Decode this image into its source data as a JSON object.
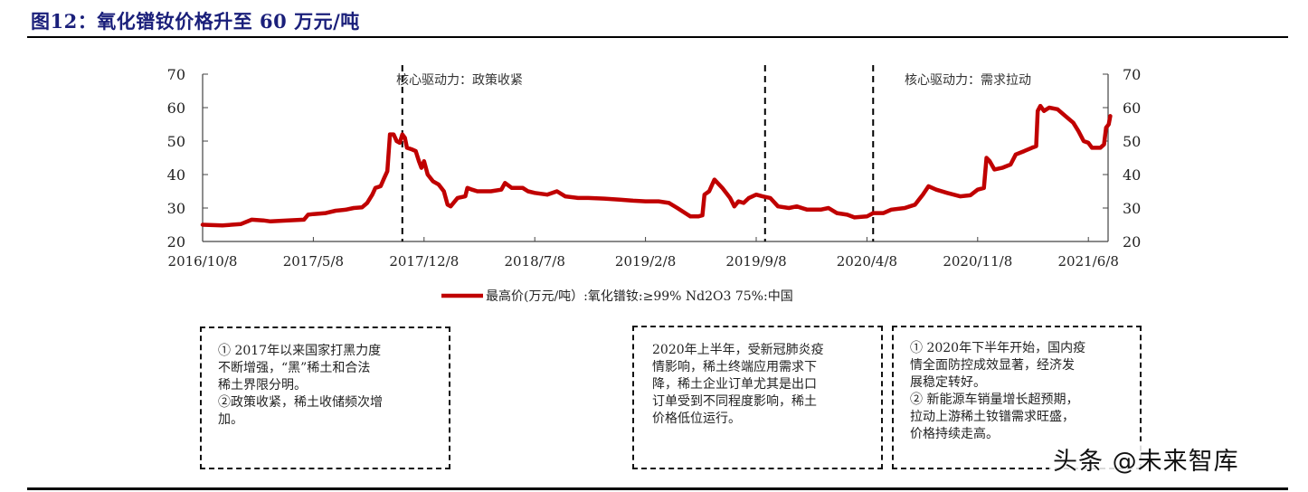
{
  "figure": {
    "title": "图12：氧化镨钕价格升至 60 万元/吨"
  },
  "chart_data": {
    "type": "line",
    "title": "图12：氧化镨钕价格升至 60 万元/吨",
    "xlabel": "",
    "ylabel": "",
    "ylim": [
      20,
      70
    ],
    "y_ticks": [
      20,
      30,
      40,
      50,
      60,
      70
    ],
    "y_right_ticks": [
      20,
      30,
      40,
      50,
      60,
      70
    ],
    "x_ticks": [
      "2016/10/8",
      "2017/5/8",
      "2017/12/8",
      "2018/7/8",
      "2019/2/8",
      "2019/9/8",
      "2020/4/8",
      "2020/11/8",
      "2021/6/8"
    ],
    "grid": false,
    "legend_position": "bottom",
    "series": [
      {
        "name": "最高价(万元/吨）:氧化镨钕:≥99% Nd2O3 75%:中国",
        "color": "#c00000",
        "points": [
          [
            "2016/10/8",
            25
          ],
          [
            "2016/11/15",
            24.8
          ],
          [
            "2016/12/20",
            25.2
          ],
          [
            "2017/1/10",
            26.5
          ],
          [
            "2017/2/1",
            26.3
          ],
          [
            "2017/2/15",
            26
          ],
          [
            "2017/3/20",
            26.3
          ],
          [
            "2017/4/20",
            26.5
          ],
          [
            "2017/4/28",
            28
          ],
          [
            "2017/5/8",
            28.2
          ],
          [
            "2017/6/1",
            28.5
          ],
          [
            "2017/6/20",
            29.2
          ],
          [
            "2017/7/10",
            29.5
          ],
          [
            "2017/7/25",
            30
          ],
          [
            "2017/8/10",
            30.2
          ],
          [
            "2017/8/20",
            31.5
          ],
          [
            "2017/8/30",
            34
          ],
          [
            "2017/9/5",
            36
          ],
          [
            "2017/9/15",
            36.5
          ],
          [
            "2017/9/22",
            39
          ],
          [
            "2017/9/28",
            41
          ],
          [
            "2017/10/3",
            52
          ],
          [
            "2017/10/10",
            52
          ],
          [
            "2017/10/16",
            50
          ],
          [
            "2017/10/22",
            49.5
          ],
          [
            "2017/10/27",
            52
          ],
          [
            "2017/11/1",
            51
          ],
          [
            "2017/11/5",
            48
          ],
          [
            "2017/11/15",
            47.5
          ],
          [
            "2017/11/22",
            47
          ],
          [
            "2017/11/28",
            44
          ],
          [
            "2017/12/3",
            42
          ],
          [
            "2017/12/8",
            44
          ],
          [
            "2017/12/15",
            40
          ],
          [
            "2017/12/25",
            38
          ],
          [
            "2018/1/5",
            37
          ],
          [
            "2018/1/15",
            35
          ],
          [
            "2018/1/22",
            31
          ],
          [
            "2018/1/28",
            30.5
          ],
          [
            "2018/2/10",
            33
          ],
          [
            "2018/2/25",
            33.5
          ],
          [
            "2018/3/1",
            36
          ],
          [
            "2018/3/10",
            35.5
          ],
          [
            "2018/3/20",
            35
          ],
          [
            "2018/4/15",
            35
          ],
          [
            "2018/5/5",
            35.5
          ],
          [
            "2018/5/12",
            37.5
          ],
          [
            "2018/5/25",
            36
          ],
          [
            "2018/6/15",
            36
          ],
          [
            "2018/6/25",
            35
          ],
          [
            "2018/7/8",
            34.5
          ],
          [
            "2018/8/1",
            34
          ],
          [
            "2018/8/20",
            35
          ],
          [
            "2018/9/5",
            33.5
          ],
          [
            "2018/9/30",
            33
          ],
          [
            "2018/10/20",
            33
          ],
          [
            "2018/11/20",
            32.8
          ],
          [
            "2018/12/20",
            32.5
          ],
          [
            "2019/1/15",
            32.2
          ],
          [
            "2019/2/8",
            32
          ],
          [
            "2019/3/5",
            32
          ],
          [
            "2019/3/25",
            31.5
          ],
          [
            "2019/4/10",
            30
          ],
          [
            "2019/4/25",
            28.5
          ],
          [
            "2019/5/5",
            27.5
          ],
          [
            "2019/5/20",
            27.5
          ],
          [
            "2019/5/28",
            27.8
          ],
          [
            "2019/6/1",
            34
          ],
          [
            "2019/6/10",
            35
          ],
          [
            "2019/6/20",
            38.5
          ],
          [
            "2019/7/5",
            36
          ],
          [
            "2019/7/20",
            33
          ],
          [
            "2019/7/28",
            30.5
          ],
          [
            "2019/8/5",
            32
          ],
          [
            "2019/8/15",
            31.5
          ],
          [
            "2019/8/25",
            33
          ],
          [
            "2019/9/8",
            34
          ],
          [
            "2019/9/20",
            33.5
          ],
          [
            "2019/10/5",
            33
          ],
          [
            "2019/10/20",
            30.5
          ],
          [
            "2019/11/10",
            30
          ],
          [
            "2019/11/25",
            30.5
          ],
          [
            "2019/12/15",
            29.5
          ],
          [
            "2020/1/10",
            29.5
          ],
          [
            "2020/1/25",
            30
          ],
          [
            "2020/2/10",
            28.5
          ],
          [
            "2020/3/1",
            28
          ],
          [
            "2020/3/15",
            27.2
          ],
          [
            "2020/4/8",
            27.5
          ],
          [
            "2020/4/20",
            28.5
          ],
          [
            "2020/5/10",
            28.5
          ],
          [
            "2020/5/25",
            29.5
          ],
          [
            "2020/6/20",
            30
          ],
          [
            "2020/7/10",
            31
          ],
          [
            "2020/7/25",
            34
          ],
          [
            "2020/8/5",
            36.5
          ],
          [
            "2020/8/20",
            35.5
          ],
          [
            "2020/9/10",
            34.5
          ],
          [
            "2020/10/5",
            33.5
          ],
          [
            "2020/10/25",
            33.8
          ],
          [
            "2020/11/8",
            35.5
          ],
          [
            "2020/11/20",
            36
          ],
          [
            "2020/11/25",
            45
          ],
          [
            "2020/12/1",
            44
          ],
          [
            "2020/12/10",
            41.5
          ],
          [
            "2020/12/25",
            42
          ],
          [
            "2021/1/10",
            43
          ],
          [
            "2021/1/20",
            46
          ],
          [
            "2021/2/5",
            47
          ],
          [
            "2021/2/20",
            48
          ],
          [
            "2021/2/28",
            48.5
          ],
          [
            "2021/3/3",
            59
          ],
          [
            "2021/3/8",
            60.5
          ],
          [
            "2021/3/15",
            59
          ],
          [
            "2021/3/25",
            60
          ],
          [
            "2021/4/10",
            59.5
          ],
          [
            "2021/4/25",
            57.5
          ],
          [
            "2021/5/10",
            55.5
          ],
          [
            "2021/5/20",
            53
          ],
          [
            "2021/5/30",
            50
          ],
          [
            "2021/6/8",
            49.5
          ],
          [
            "2021/6/15",
            48
          ],
          [
            "2021/7/1",
            48
          ],
          [
            "2021/7/8",
            49
          ],
          [
            "2021/7/12",
            54
          ],
          [
            "2021/7/17",
            55
          ],
          [
            "2021/7/20",
            57.5
          ]
        ]
      }
    ],
    "vertical_markers": [
      {
        "date": "2017/10/27",
        "style": "dashed"
      },
      {
        "date": "2019/9/25",
        "style": "dashed"
      },
      {
        "date": "2020/4/20",
        "style": "dashed"
      }
    ],
    "annotations": [
      {
        "text": "核心驱动力：政策收紧",
        "position": "top, between first and second marker"
      },
      {
        "text": "核心驱动力：需求拉动",
        "position": "top, right of third marker"
      }
    ]
  },
  "chart": {
    "y_left_labels": [
      "70",
      "60",
      "50",
      "40",
      "30",
      "20"
    ],
    "y_right_labels": [
      "70",
      "60",
      "50",
      "40",
      "30",
      "20"
    ],
    "x_labels": [
      "2016/10/8",
      "2017/5/8",
      "2017/12/8",
      "2018/7/8",
      "2019/2/8",
      "2019/9/8",
      "2020/4/8",
      "2020/11/8",
      "2021/6/8"
    ],
    "annotation_policy": "核心驱动力：政策收紧",
    "annotation_demand": "核心驱动力：需求拉动",
    "legend_label": "最高价(万元/吨）:氧化镨钕:≥99% Nd2O3 75%:中国",
    "line_color": "#c00000"
  },
  "notes": {
    "box1": [
      "① 2017年以来国家打黑力度",
      "不断增强，“黑”稀土和合法",
      "稀土界限分明。",
      "②政策收紧，稀土收储频次增",
      "加。"
    ],
    "box2": [
      "2020年上半年，受新冠肺炎疫",
      "情影响，稀土终端应用需求下",
      "降，稀土企业订单尤其是出口",
      "订单受到不同程度影响，稀土",
      "价格低位运行。"
    ],
    "box3": [
      "① 2020年下半年开始，国内疫",
      "情全面防控成效显著，经济发",
      "展稳定转好。",
      "② 新能源车销量增长超预期，",
      "拉动上游稀土钕镨需求旺盛，",
      "价格持续走高。"
    ]
  },
  "watermark": "头条 @未来智库"
}
